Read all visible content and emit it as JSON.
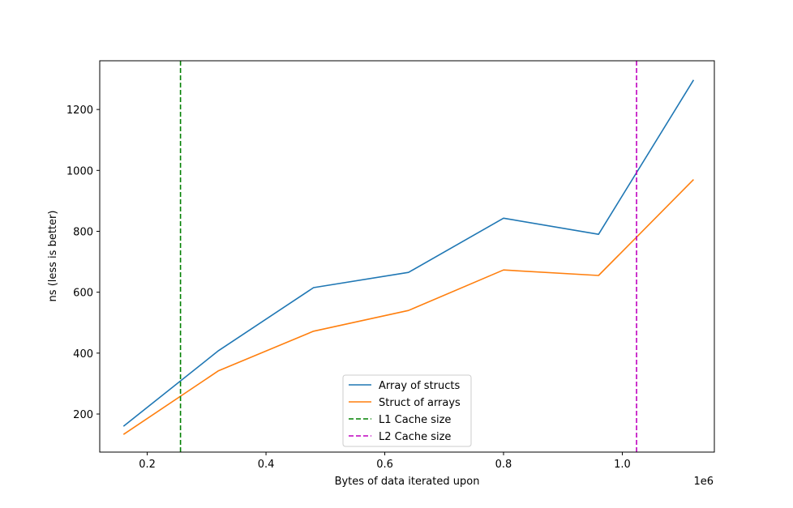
{
  "chart_data": {
    "type": "line",
    "title": "",
    "xlabel": "Bytes of data iterated upon",
    "ylabel": "ns (less is better)",
    "x_offset_label": "1e6",
    "xlim": [
      0.12,
      1.155
    ],
    "ylim": [
      75,
      1360
    ],
    "xticks": [
      0.2,
      0.4,
      0.6,
      0.8,
      1.0
    ],
    "xtick_labels": [
      "0.2",
      "0.4",
      "0.6",
      "0.8",
      "1.0"
    ],
    "yticks": [
      200,
      400,
      600,
      800,
      1000,
      1200
    ],
    "ytick_labels": [
      "200",
      "400",
      "600",
      "800",
      "1000",
      "1200"
    ],
    "x": [
      0.16,
      0.32,
      0.48,
      0.64,
      0.8,
      0.96,
      1.12
    ],
    "series": [
      {
        "name": "Array of structs",
        "color": "#1f77b4",
        "values": [
          160,
          408,
          615,
          665,
          843,
          790,
          1297
        ]
      },
      {
        "name": "Struct of arrays",
        "color": "#ff7f0e",
        "values": [
          133,
          342,
          472,
          540,
          673,
          655,
          970
        ]
      }
    ],
    "vlines": [
      {
        "name": "L1 Cache size",
        "x": 0.256,
        "color": "#008000",
        "style": "dashed"
      },
      {
        "name": "L2 Cache size",
        "x": 1.024,
        "color": "#bf00bf",
        "style": "dashed"
      }
    ],
    "legend_position": "lower center",
    "grid": false
  }
}
